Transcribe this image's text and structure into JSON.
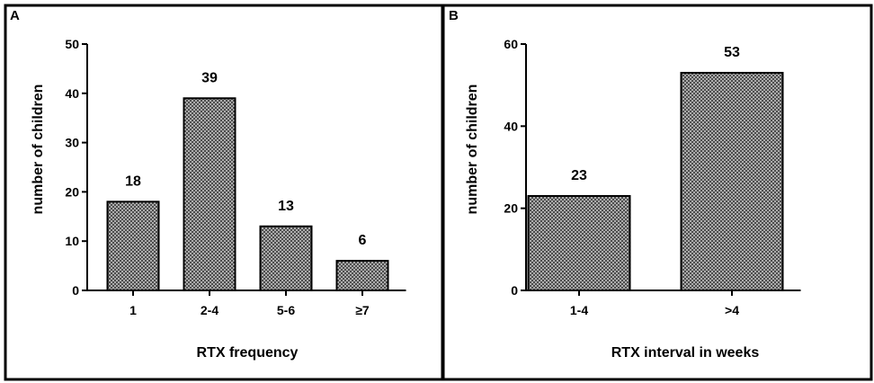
{
  "chart_data": [
    {
      "type": "bar",
      "panel_label": "A",
      "categories": [
        "1",
        "2-4",
        "5-6",
        "≥7"
      ],
      "values": [
        18,
        39,
        13,
        6
      ],
      "data_labels": [
        "18",
        "39",
        "13",
        "6"
      ],
      "xlabel": "RTX frequency",
      "ylabel": "number of children",
      "ylim": [
        0,
        50
      ],
      "yticks": [
        0,
        10,
        20,
        30,
        40,
        50
      ],
      "grid": false,
      "bar_fill": "crosshatch"
    },
    {
      "type": "bar",
      "panel_label": "B",
      "categories": [
        "1-4",
        ">4"
      ],
      "values": [
        23,
        53
      ],
      "data_labels": [
        "23",
        "53"
      ],
      "xlabel": "RTX interval in weeks",
      "ylabel": "number of children",
      "ylim": [
        0,
        60
      ],
      "yticks": [
        0,
        20,
        40,
        60
      ],
      "grid": false,
      "bar_fill": "crosshatch"
    }
  ],
  "colors": {
    "bar_fill_base": "#c8c8c8",
    "hatch": "#3a3a3a",
    "stroke": "#000000"
  }
}
